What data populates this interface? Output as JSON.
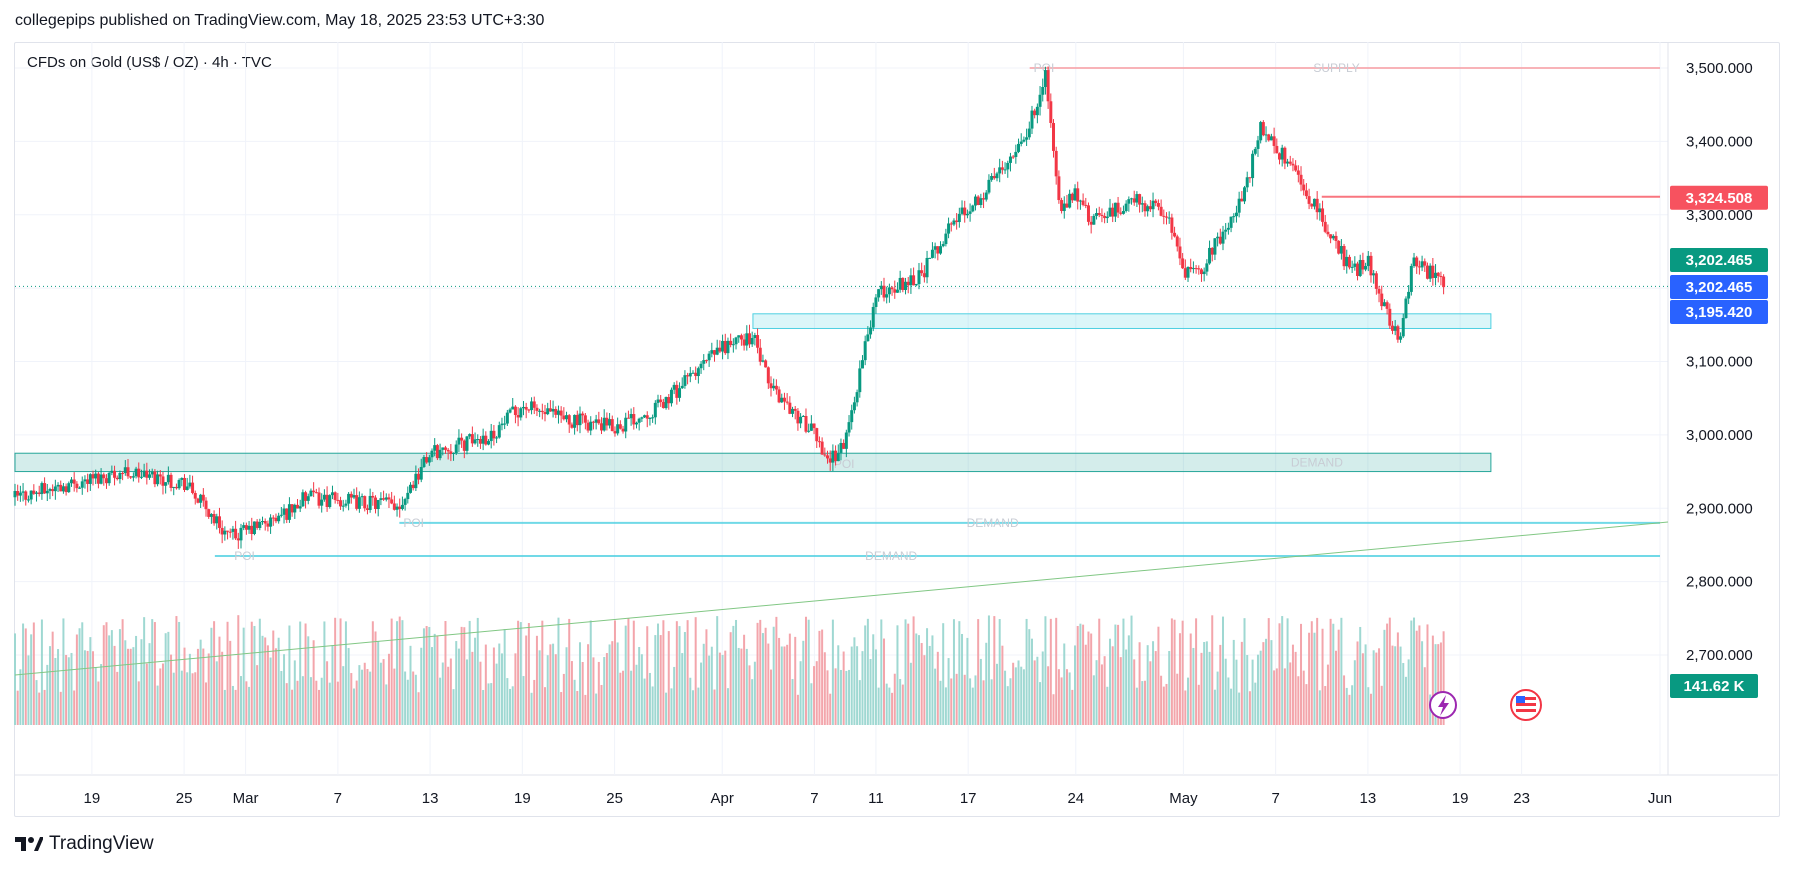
{
  "header": {
    "published": "collegepips published on TradingView.com, May 18, 2025 23:53 UTC+3:30",
    "symbol_title": "CFDs on Gold (US$ / OZ) · 4h · TVC"
  },
  "brand": {
    "name": "TradingView",
    "logo_text": "TV"
  },
  "chart_data": {
    "type": "candlestick",
    "ylim": [
      2350,
      3560
    ],
    "y_ticks": [
      3500,
      3400,
      3300,
      3200,
      3100,
      3000,
      2900,
      2800,
      2700
    ],
    "y_tick_labels": [
      "3,500.000",
      "3,400.000",
      "3,300.000",
      "3,200.000",
      "3,100.000",
      "3,000.000",
      "2,900.000",
      "2,800.000",
      "2,700.000"
    ],
    "x_labels": [
      "19",
      "25",
      "Mar",
      "7",
      "13",
      "19",
      "25",
      "Apr",
      "7",
      "11",
      "17",
      "24",
      "May",
      "7",
      "13",
      "19",
      "23",
      "Jun"
    ],
    "price_path": [
      [
        "Feb 14",
        2915
      ],
      [
        "Feb 18",
        2935
      ],
      [
        "Feb 21",
        2950
      ],
      [
        "Feb 25",
        2935
      ],
      [
        "Feb 28",
        2860
      ],
      [
        "Mar 3",
        2885
      ],
      [
        "Mar 5",
        2915
      ],
      [
        "Mar 7",
        2910
      ],
      [
        "Mar 11",
        2905
      ],
      [
        "Mar 13",
        2975
      ],
      [
        "Mar 17",
        3000
      ],
      [
        "Mar 19",
        3040
      ],
      [
        "Mar 21",
        3025
      ],
      [
        "Mar 25",
        3010
      ],
      [
        "Mar 28",
        3040
      ],
      [
        "Apr 1",
        3120
      ],
      [
        "Apr 3",
        3135
      ],
      [
        "Apr 4",
        3070
      ],
      [
        "Apr 7",
        3000
      ],
      [
        "Apr 8",
        2965
      ],
      [
        "Apr 9",
        2990
      ],
      [
        "Apr 10",
        3090
      ],
      [
        "Apr 11",
        3190
      ],
      [
        "Apr 14",
        3220
      ],
      [
        "Apr 16",
        3290
      ],
      [
        "Apr 18",
        3330
      ],
      [
        "Apr 21",
        3420
      ],
      [
        "Apr 22",
        3495
      ],
      [
        "Apr 23",
        3300
      ],
      [
        "Apr 24",
        3330
      ],
      [
        "Apr 25",
        3290
      ],
      [
        "Apr 28",
        3320
      ],
      [
        "Apr 30",
        3300
      ],
      [
        "May 1",
        3220
      ],
      [
        "May 2",
        3220
      ],
      [
        "May 5",
        3330
      ],
      [
        "May 6",
        3420
      ],
      [
        "May 7",
        3390
      ],
      [
        "May 8",
        3370
      ],
      [
        "May 9",
        3330
      ],
      [
        "May 12",
        3220
      ],
      [
        "May 13",
        3240
      ],
      [
        "May 14",
        3180
      ],
      [
        "May 15",
        3130
      ],
      [
        "May 16",
        3240
      ],
      [
        "May 18",
        3202.465
      ]
    ],
    "price_badges": [
      {
        "value": 3324.508,
        "label": "3,324.508",
        "color": "#f7525f"
      },
      {
        "value": 3202.465,
        "label": "3,202.465",
        "color": "#089981"
      },
      {
        "value": 3202.465,
        "label": "3,202.465",
        "color": "#2962ff"
      },
      {
        "value": 3195.42,
        "label": "3,195.420",
        "color": "#2962ff"
      }
    ],
    "volume_badge": {
      "label": "141.62 K",
      "color": "#089981"
    },
    "zones": [
      {
        "from": "Feb 14",
        "to": "May 21",
        "low": 2950,
        "high": 2975,
        "color": "#26a69a",
        "label": "DEMAND"
      },
      {
        "from": "Apr 3",
        "to": "May 21",
        "low": 3145,
        "high": 3165,
        "color": "#4dd0e1",
        "label": ""
      }
    ],
    "levels": [
      {
        "from": "Apr 21",
        "to": "Jun 1",
        "value": 3500,
        "color": "#f7a1a8",
        "label": "SUPPLY"
      },
      {
        "from": "May 10",
        "to": "Jun 1",
        "value": 3324.508,
        "color": "#f7525f",
        "label": ""
      },
      {
        "from": "Feb 27",
        "to": "Jun 1",
        "value": 2835,
        "color": "#4dd0e1",
        "label": "DEMAND"
      },
      {
        "from": "Mar 11",
        "to": "Jun 1",
        "value": 2880,
        "color": "#4dd0e1",
        "label": "DEMAND"
      }
    ],
    "point_labels": [
      {
        "text": "POI",
        "date": "Apr 21",
        "value": 3500
      },
      {
        "text": "POI",
        "date": "Mar 11",
        "value": 2880
      },
      {
        "text": "POI",
        "date": "Feb 28",
        "value": 2835
      },
      {
        "text": "POI",
        "date": "Apr 8",
        "value": 2960
      }
    ],
    "up_color": "#089981",
    "down_color": "#f23645"
  }
}
